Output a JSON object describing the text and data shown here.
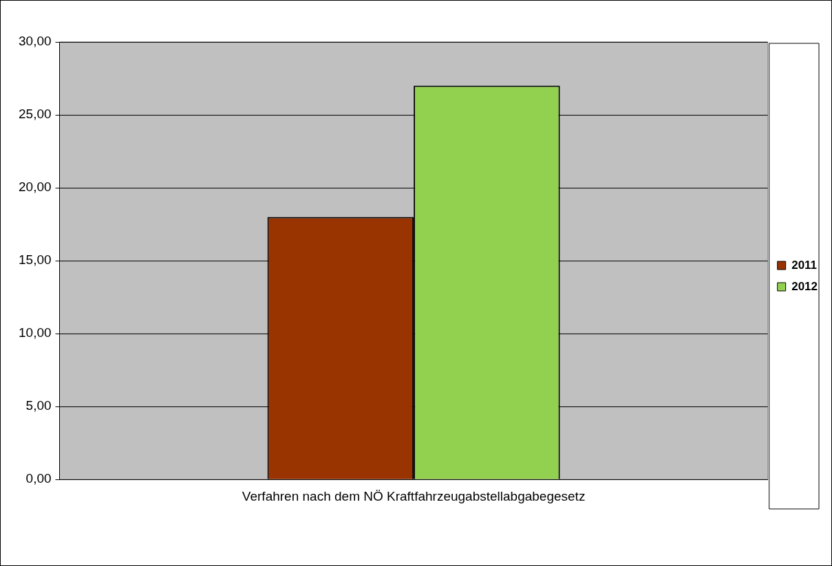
{
  "chart_data": {
    "type": "bar",
    "categories": [
      "Verfahren nach dem NÖ Kraftfahrzeugabstellabgabegesetz"
    ],
    "series": [
      {
        "name": "2011",
        "color": "#993300",
        "values": [
          18
        ]
      },
      {
        "name": "2012",
        "color": "#92d050",
        "values": [
          27
        ]
      }
    ],
    "ylim": [
      0,
      30
    ],
    "yticks": [
      {
        "value": 0,
        "label": "0,00"
      },
      {
        "value": 5,
        "label": "5,00"
      },
      {
        "value": 10,
        "label": "10,00"
      },
      {
        "value": 15,
        "label": "15,00"
      },
      {
        "value": 20,
        "label": "20,00"
      },
      {
        "value": 25,
        "label": "25,00"
      },
      {
        "value": 30,
        "label": "30,00"
      }
    ],
    "grid": "y",
    "legend": "right"
  }
}
